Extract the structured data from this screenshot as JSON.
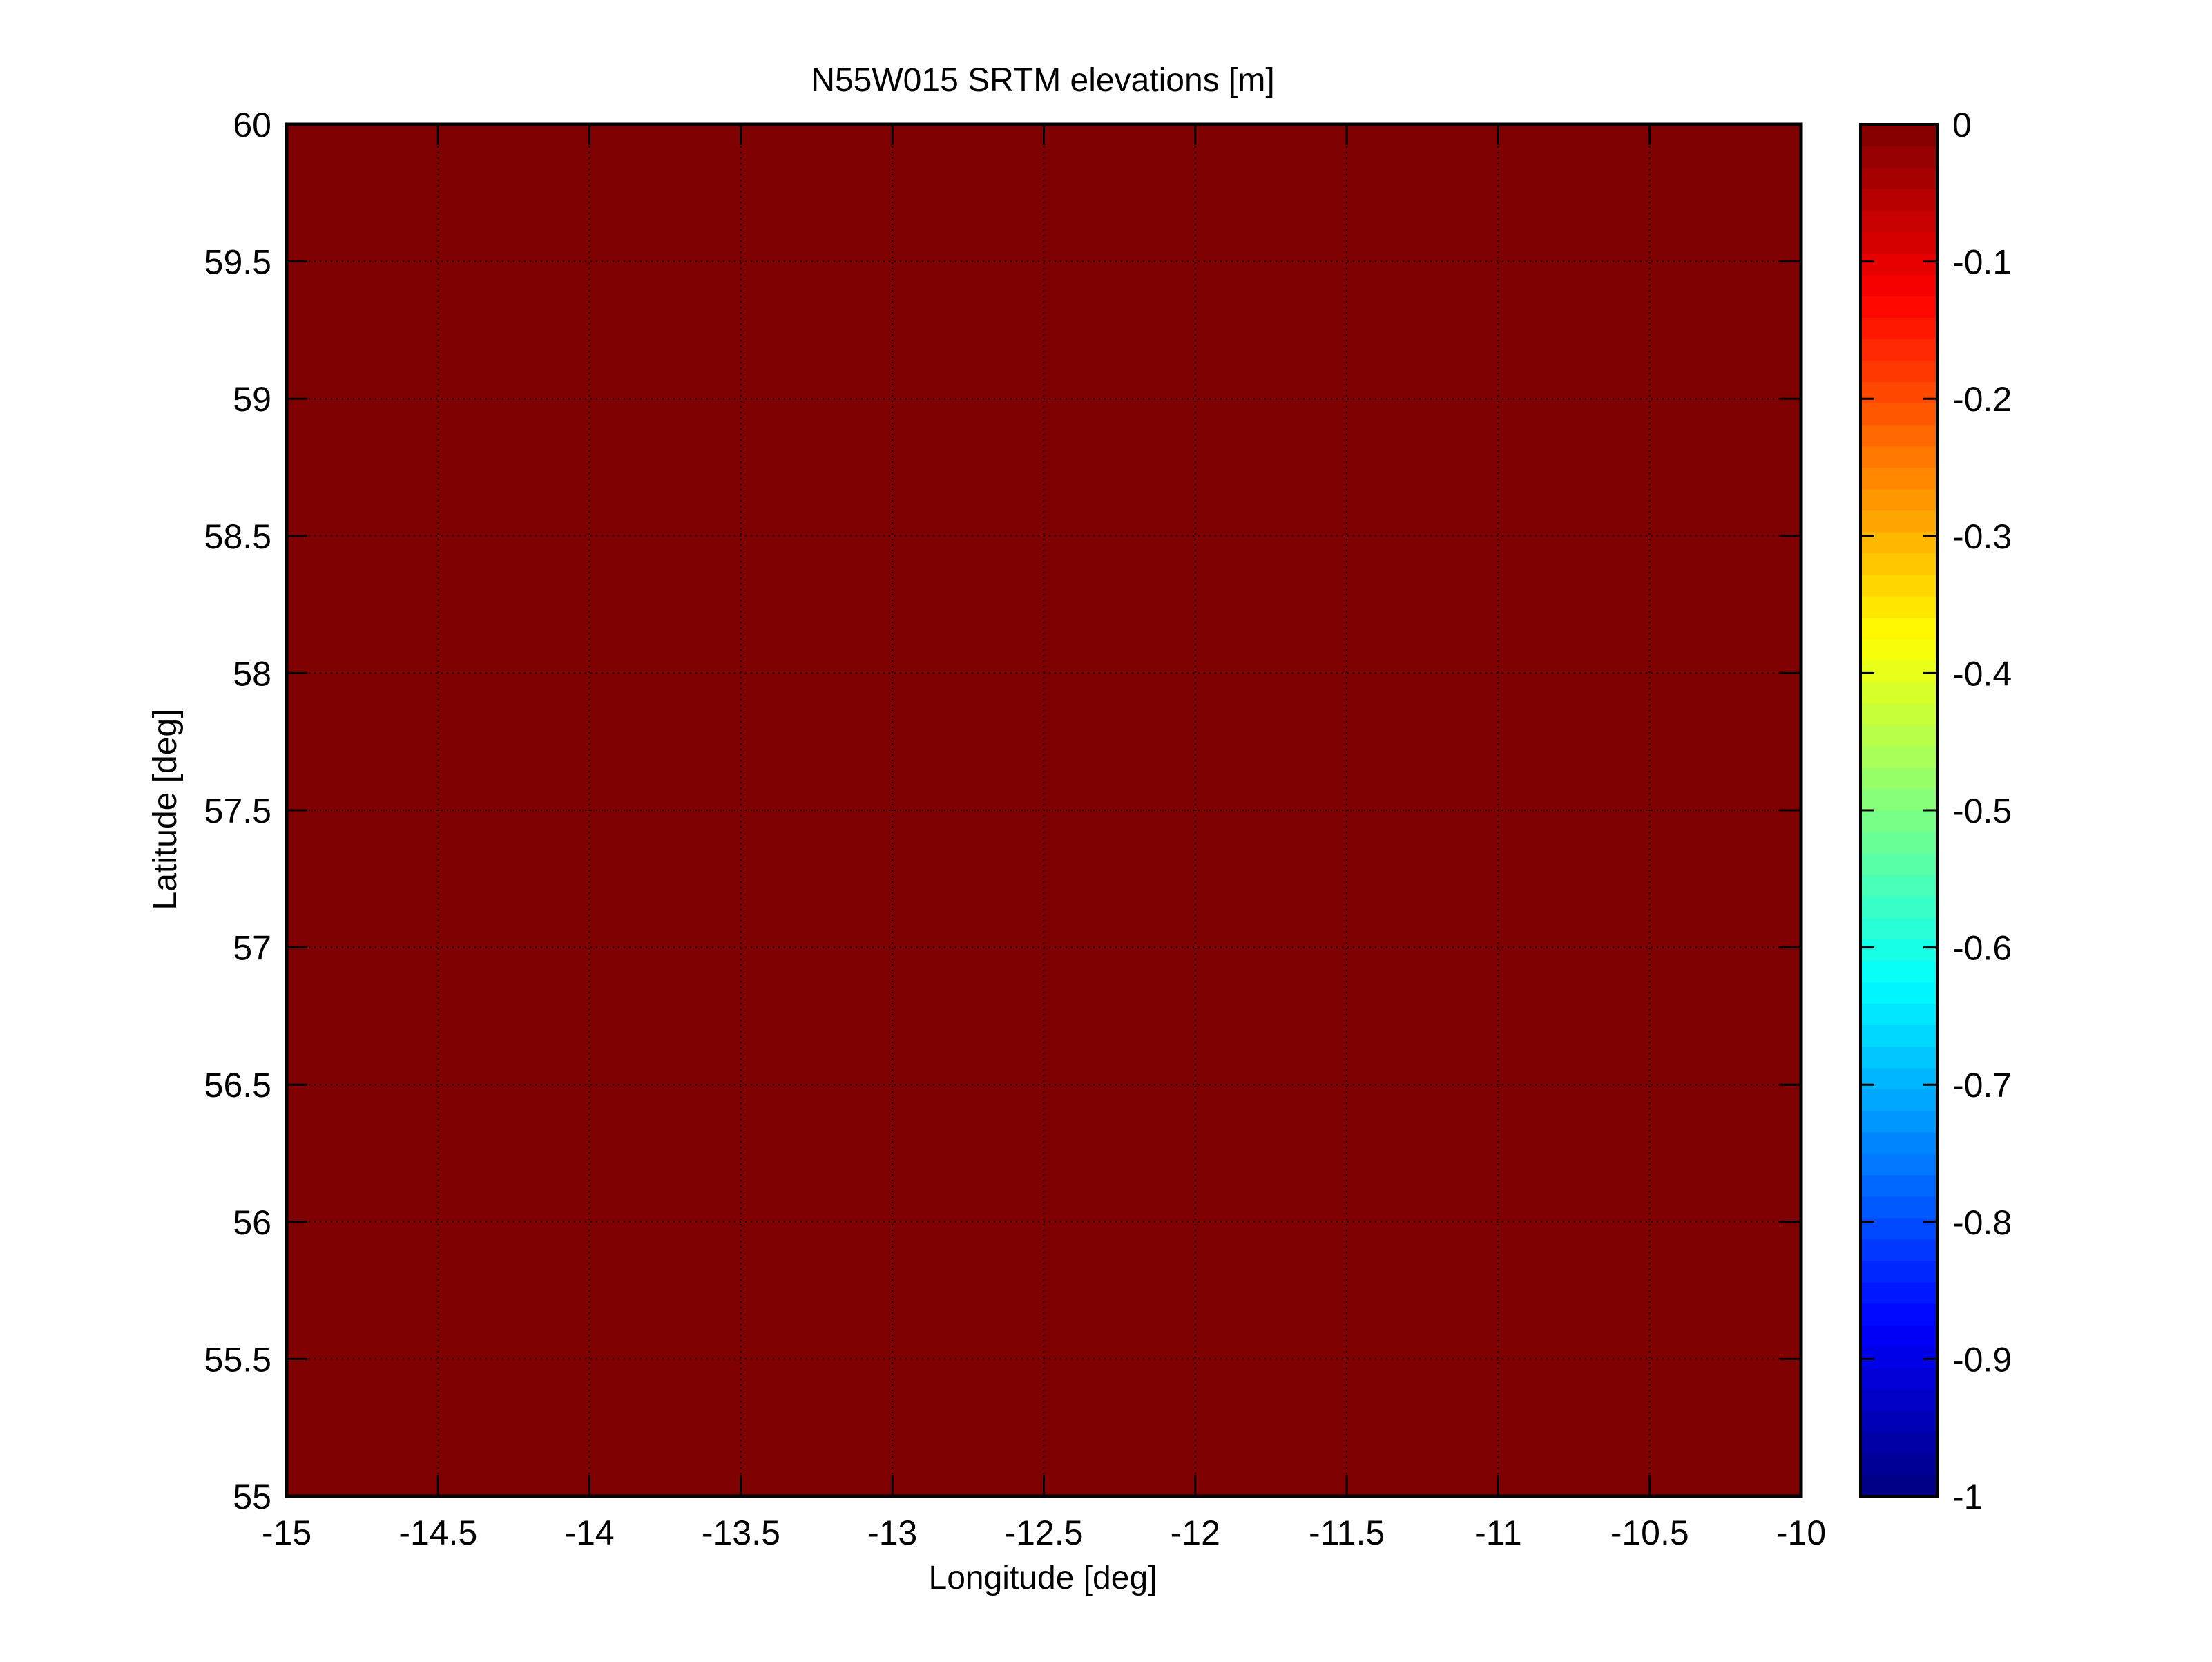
{
  "chart_data": {
    "type": "heatmap",
    "title": "N55W015 SRTM elevations [m]",
    "xlabel": "Longitude [deg]",
    "ylabel": "Latitude [deg]",
    "xlim": [
      -15,
      -10
    ],
    "ylim": [
      55,
      60
    ],
    "xticks": [
      -15,
      -14.5,
      -14,
      -13.5,
      -13,
      -12.5,
      -12,
      -11.5,
      -11,
      -10.5,
      -10
    ],
    "xtick_labels": [
      "-15",
      "-14.5",
      "-14",
      "-13.5",
      "-13",
      "-12.5",
      "-12",
      "-11.5",
      "-11",
      "-10.5",
      "-10"
    ],
    "yticks": [
      55,
      55.5,
      56,
      56.5,
      57,
      57.5,
      58,
      58.5,
      59,
      59.5,
      60
    ],
    "ytick_labels": [
      "55",
      "55.5",
      "56",
      "56.5",
      "57",
      "57.5",
      "58",
      "58.5",
      "59",
      "59.5",
      "60"
    ],
    "grid": true,
    "values_uniform": 0,
    "colormap": "jet",
    "colormap_levels": 64,
    "colorbar": {
      "clim": [
        -1,
        0
      ],
      "ticks": [
        0,
        -0.1,
        -0.2,
        -0.3,
        -0.4,
        -0.5,
        -0.6,
        -0.7,
        -0.8,
        -0.9,
        -1
      ],
      "tick_labels": [
        "0",
        "-0.1",
        "-0.2",
        "-0.3",
        "-0.4",
        "-0.5",
        "-0.6",
        "-0.7",
        "-0.8",
        "-0.9",
        "-1"
      ],
      "placement": "right"
    },
    "field_color": "#7f0000"
  }
}
